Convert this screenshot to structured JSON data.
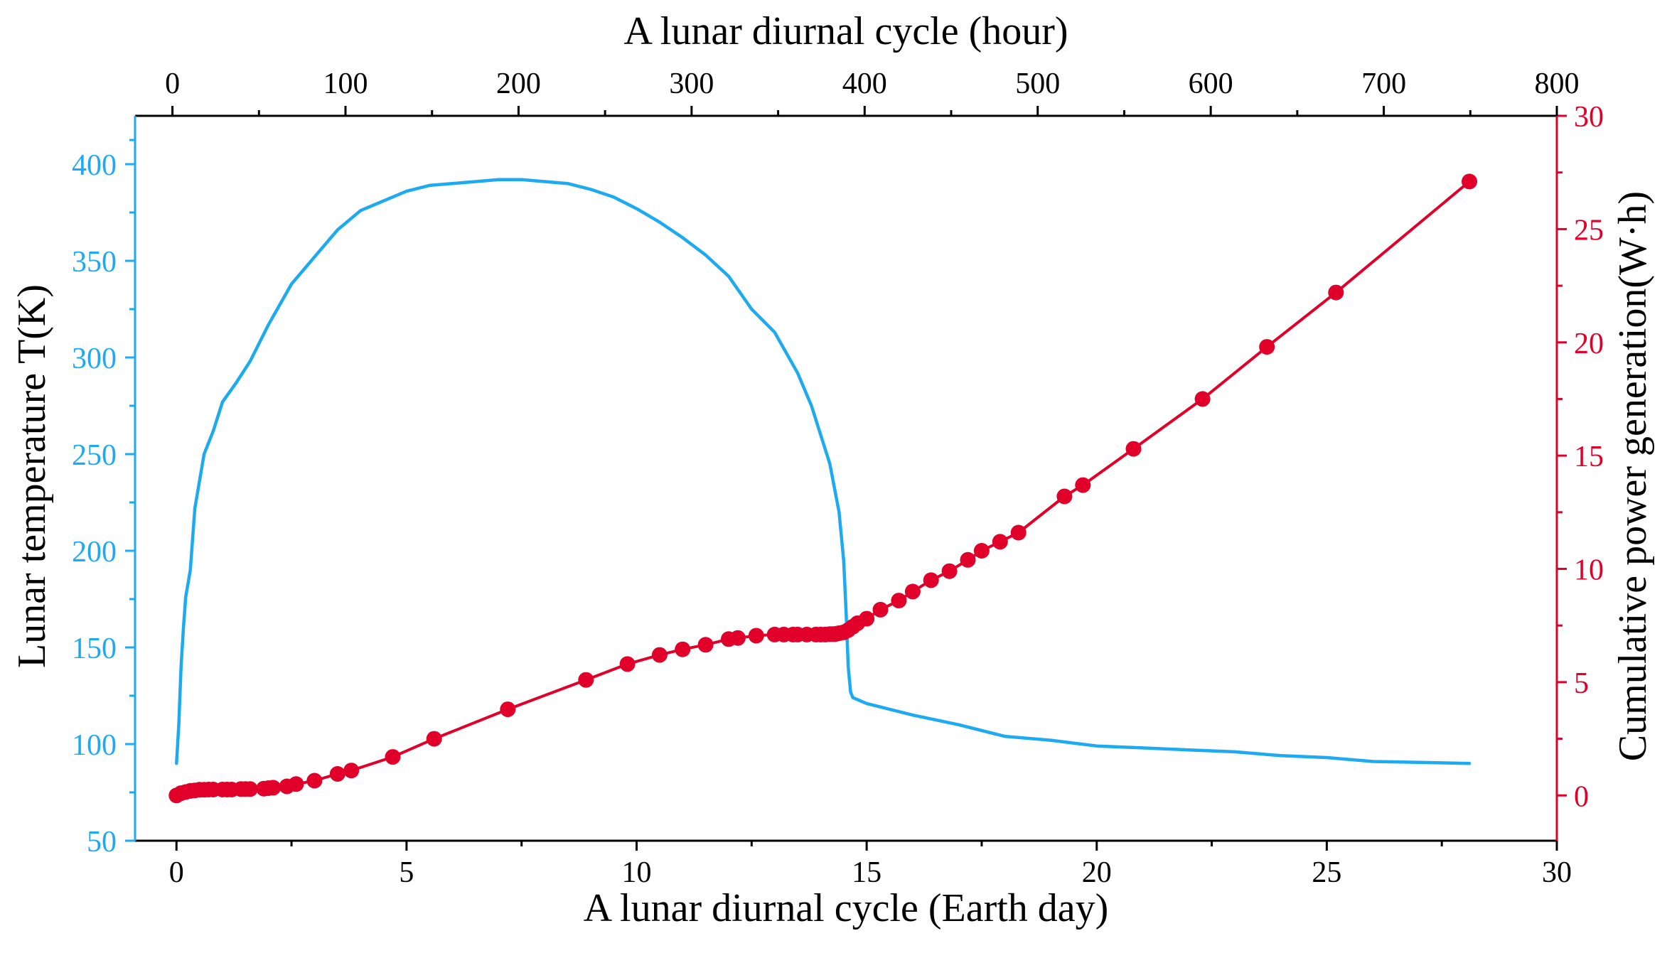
{
  "chart_data": {
    "type": "line",
    "title": "",
    "colors": {
      "temperature": "#1EAAF1",
      "power": "#E0002A",
      "axis": "#000000"
    },
    "x_bottom": {
      "label": "A lunar diurnal cycle (Earth day)",
      "range": [
        -0.9,
        30
      ],
      "ticks": [
        0,
        5,
        10,
        15,
        20,
        25,
        30
      ]
    },
    "x_top": {
      "label": "A lunar diurnal cycle (hour)",
      "range": [
        -21.6,
        800
      ],
      "ticks": [
        0,
        100,
        200,
        300,
        400,
        500,
        600,
        700,
        800
      ]
    },
    "y_left": {
      "label": "Lunar temperature T(K)",
      "range": [
        50,
        425
      ],
      "ticks": [
        50,
        100,
        150,
        200,
        250,
        300,
        350,
        400
      ]
    },
    "y_right": {
      "label": "Cumulative power generation(W·h)",
      "range": [
        -2,
        30
      ],
      "ticks": [
        0,
        5,
        10,
        15,
        20,
        25,
        30
      ]
    },
    "series": [
      {
        "name": "Lunar temperature",
        "axis": "left",
        "marker": "none",
        "x": [
          0.0,
          0.05,
          0.1,
          0.15,
          0.2,
          0.3,
          0.4,
          0.5,
          0.6,
          0.8,
          1.0,
          1.3,
          1.6,
          2.0,
          2.5,
          3.0,
          3.5,
          4.0,
          4.5,
          5.0,
          5.5,
          6.0,
          6.5,
          7.0,
          7.5,
          8.0,
          8.5,
          9.0,
          9.5,
          10.0,
          10.5,
          11.0,
          11.5,
          12.0,
          12.5,
          13.0,
          13.5,
          13.8,
          14.0,
          14.2,
          14.4,
          14.5,
          14.55,
          14.6,
          14.65,
          14.7,
          14.8,
          15.0,
          16.0,
          17.0,
          18.0,
          19.0,
          20.0,
          21.0,
          22.0,
          23.0,
          24.0,
          25.0,
          26.0,
          27.0,
          28.1
        ],
        "y": [
          90,
          110,
          140,
          160,
          176,
          190,
          222,
          236,
          250,
          262,
          277,
          287,
          298,
          317,
          338,
          352,
          366,
          376,
          381,
          386,
          389,
          390,
          391,
          392,
          392,
          391,
          390,
          387,
          383,
          377,
          370,
          362,
          353,
          342,
          325,
          313,
          292,
          275,
          260,
          245,
          220,
          195,
          170,
          140,
          127,
          124,
          123,
          121,
          115,
          110,
          104,
          102,
          99,
          98,
          97,
          96,
          94,
          93,
          91,
          90.5,
          90
        ]
      },
      {
        "name": "Cumulative power generation",
        "axis": "right",
        "marker": "circle",
        "x": [
          0.0,
          0.1,
          0.2,
          0.3,
          0.4,
          0.5,
          0.6,
          0.7,
          0.8,
          1.0,
          1.1,
          1.2,
          1.4,
          1.5,
          1.6,
          1.9,
          2.0,
          2.1,
          2.4,
          2.6,
          3.0,
          3.5,
          3.8,
          4.7,
          5.6,
          7.2,
          8.9,
          9.8,
          10.5,
          11.0,
          11.5,
          12.0,
          12.2,
          12.6,
          13.0,
          13.2,
          13.4,
          13.5,
          13.7,
          13.9,
          14.0,
          14.1,
          14.2,
          14.25,
          14.3,
          14.35,
          14.4,
          14.5,
          14.6,
          14.7,
          14.8,
          15.0,
          15.3,
          15.7,
          16.0,
          16.4,
          16.8,
          17.2,
          17.5,
          17.9,
          18.3,
          19.3,
          19.7,
          20.8,
          22.3,
          23.7,
          25.2,
          28.1
        ],
        "y": [
          0.0,
          0.1,
          0.15,
          0.2,
          0.22,
          0.25,
          0.25,
          0.26,
          0.26,
          0.26,
          0.26,
          0.26,
          0.28,
          0.28,
          0.28,
          0.3,
          0.32,
          0.34,
          0.4,
          0.5,
          0.65,
          0.95,
          1.1,
          1.7,
          2.5,
          3.8,
          5.1,
          5.8,
          6.2,
          6.45,
          6.65,
          6.9,
          6.95,
          7.05,
          7.1,
          7.1,
          7.1,
          7.1,
          7.1,
          7.1,
          7.1,
          7.1,
          7.12,
          7.12,
          7.12,
          7.14,
          7.16,
          7.2,
          7.3,
          7.45,
          7.6,
          7.8,
          8.2,
          8.6,
          9.0,
          9.5,
          9.9,
          10.4,
          10.8,
          11.2,
          11.6,
          13.2,
          13.7,
          15.3,
          17.5,
          19.8,
          22.2,
          27.1
        ]
      }
    ]
  }
}
